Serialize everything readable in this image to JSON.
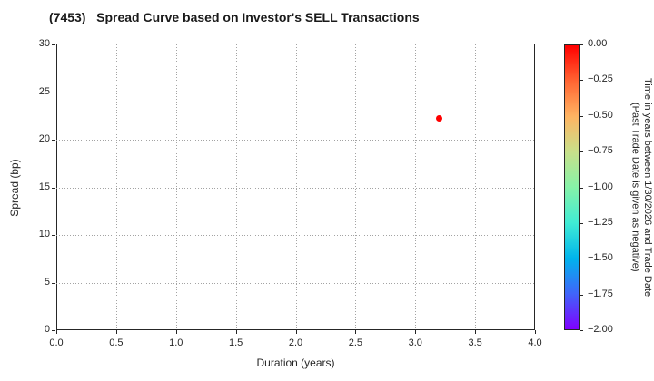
{
  "chart_data": {
    "type": "scatter",
    "title": "(7453)   Spread Curve based on Investor's SELL Transactions",
    "xlabel": "Duration (years)",
    "ylabel": "Spread (bp)",
    "xlim": [
      0.0,
      4.0
    ],
    "ylim": [
      0,
      30
    ],
    "x_tick_labels": [
      "0.0",
      "0.5",
      "1.0",
      "1.5",
      "2.0",
      "2.5",
      "3.0",
      "3.5",
      "4.0"
    ],
    "y_tick_labels": [
      "0",
      "5",
      "10",
      "15",
      "20",
      "25",
      "30"
    ],
    "grid": true,
    "grid_style": "dotted",
    "background": "#ffffff",
    "points": [
      {
        "x": 3.2,
        "y": 22.2,
        "color_value": 0.0,
        "color": "#ff0000"
      }
    ],
    "colorbar": {
      "label_line1": "Time in years between 1/30/2026 and Trade Date",
      "label_line2": "(Past Trade Date is given as negative)",
      "tick_labels": [
        "0.00",
        "−0.25",
        "−0.50",
        "−0.75",
        "−1.00",
        "−1.25",
        "−1.50",
        "−1.75",
        "−2.00"
      ],
      "vmax": 0.0,
      "vmin": -2.0,
      "colormap": "rainbow",
      "gradient_top_to_bottom": [
        "#ff0000",
        "#ff6432",
        "#ffb462",
        "#c8e08a",
        "#86f2a8",
        "#40ecd4",
        "#00b4ec",
        "#4064fa",
        "#8000ff"
      ]
    }
  }
}
